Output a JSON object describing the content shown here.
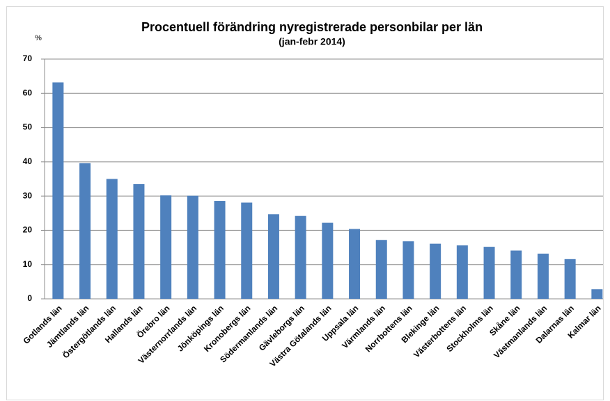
{
  "chart_data": {
    "type": "bar",
    "title": "Procentuell förändring nyregistrerade personbilar per län",
    "subtitle": "(jan-febr 2014)",
    "y_label": "%",
    "categories": [
      "Gotlands län",
      "Jämtlands län",
      "Östergötlands län",
      "Hallands län",
      "Örebro län",
      "Västernorrlands län",
      "Jönköpings län",
      "Kronobergs län",
      "Södermanlands län",
      "Gävleborgs län",
      "Västra Götalands län",
      "Uppsala län",
      "Värmlands län",
      "Norrbottens län",
      "Blekinge län",
      "Västerbottens län",
      "Stockholms län",
      "Skåne län",
      "Västmanlands län",
      "Dalarnas län",
      "Kalmar län"
    ],
    "values": [
      63.2,
      39.6,
      35,
      33.5,
      30.2,
      30.1,
      28.6,
      28.1,
      24.7,
      24.2,
      22.2,
      20.4,
      17.2,
      16.8,
      16.1,
      15.6,
      15.2,
      14.1,
      13.2,
      11.6,
      2.8
    ],
    "color": "#4f81bd",
    "ylim": [
      0,
      70
    ],
    "yticks": [
      0,
      10,
      20,
      30,
      40,
      50,
      60,
      70
    ],
    "grid": true
  }
}
